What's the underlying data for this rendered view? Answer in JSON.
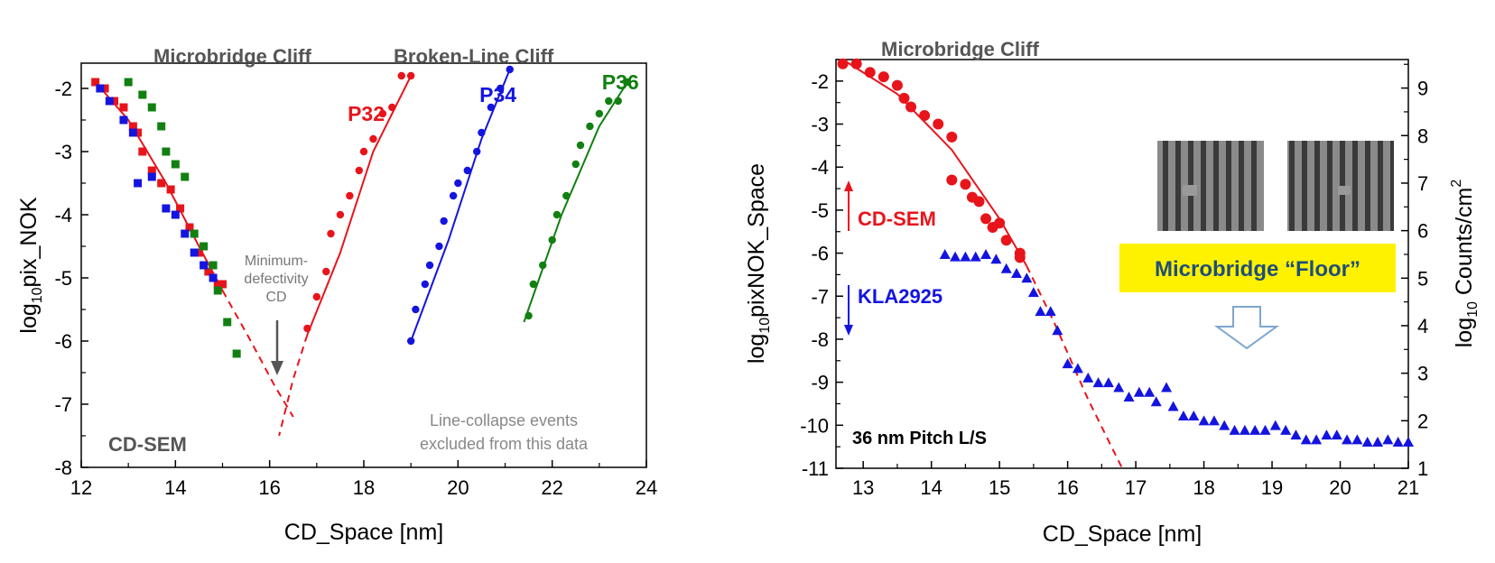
{
  "colors": {
    "red": "#e8141b",
    "blue": "#1414e0",
    "green": "#118011",
    "gray": "#555555",
    "yellow": "#fff200"
  },
  "chart_data": [
    {
      "type": "scatter",
      "xlabel": "CD_Space  [nm]",
      "ylabel_base": "log",
      "ylabel_sub": "10",
      "ylabel_tail": "pix_NOK",
      "xlim": [
        12,
        24
      ],
      "ylim": [
        -8,
        -1.6
      ],
      "xticks": [
        12,
        14,
        16,
        18,
        20,
        22,
        24
      ],
      "xtick_labels": [
        "12",
        "14",
        "16",
        "18",
        "20",
        "22",
        "24"
      ],
      "yticks": [
        -8,
        -7,
        -6,
        -5,
        -4,
        -3,
        -2
      ],
      "ytick_labels": [
        "-8",
        "-7",
        "-6",
        "-5",
        "-4",
        "-3",
        "-2"
      ],
      "annotations": {
        "microbridge_cliff": "Microbridge Cliff",
        "broken_line_cliff": "Broken-Line Cliff",
        "min_def_1": "Minimum-",
        "min_def_2": "defectivity",
        "min_def_3": "CD",
        "cdsem": "CD-SEM",
        "excluded_1": "Line-collapse events",
        "excluded_2": "excluded from this data"
      },
      "microbridge_series": [
        {
          "color": "red",
          "points": [
            [
              12.3,
              -1.9
            ],
            [
              12.5,
              -2.0
            ],
            [
              12.7,
              -2.2
            ],
            [
              12.9,
              -2.3
            ],
            [
              13.1,
              -2.6
            ],
            [
              13.2,
              -2.7
            ],
            [
              13.3,
              -3.0
            ],
            [
              13.5,
              -3.3
            ],
            [
              13.7,
              -3.5
            ],
            [
              13.9,
              -3.6
            ],
            [
              14.1,
              -3.9
            ],
            [
              14.3,
              -4.2
            ],
            [
              14.5,
              -4.6
            ],
            [
              14.7,
              -4.9
            ],
            [
              14.9,
              -5.1
            ],
            [
              15.0,
              -5.1
            ]
          ]
        },
        {
          "color": "blue",
          "points": [
            [
              12.4,
              -2.0
            ],
            [
              12.6,
              -2.2
            ],
            [
              12.9,
              -2.5
            ],
            [
              13.1,
              -2.7
            ],
            [
              13.2,
              -3.5
            ],
            [
              13.5,
              -3.4
            ],
            [
              13.8,
              -3.9
            ],
            [
              14.0,
              -4.0
            ],
            [
              14.2,
              -4.3
            ],
            [
              14.4,
              -4.6
            ],
            [
              14.6,
              -4.8
            ],
            [
              14.8,
              -5.0
            ]
          ]
        },
        {
          "color": "green",
          "points": [
            [
              13.0,
              -1.9
            ],
            [
              13.3,
              -2.1
            ],
            [
              13.5,
              -2.3
            ],
            [
              13.7,
              -2.6
            ],
            [
              13.8,
              -3.0
            ],
            [
              14.0,
              -3.2
            ],
            [
              14.2,
              -3.4
            ],
            [
              14.4,
              -4.3
            ],
            [
              14.6,
              -4.5
            ],
            [
              14.8,
              -4.8
            ],
            [
              14.9,
              -5.2
            ],
            [
              15.1,
              -5.7
            ],
            [
              15.3,
              -6.2
            ]
          ]
        }
      ],
      "microbridge_fit": [
        [
          12.3,
          -1.9
        ],
        [
          13.0,
          -2.5
        ],
        [
          13.8,
          -3.5
        ],
        [
          14.5,
          -4.5
        ],
        [
          15.0,
          -5.2
        ]
      ],
      "microbridge_fit_ext": [
        [
          15.0,
          -5.2
        ],
        [
          15.6,
          -6.0
        ],
        [
          16.1,
          -6.7
        ],
        [
          16.5,
          -7.2
        ]
      ],
      "broken_series": [
        {
          "name": "P32",
          "color": "red",
          "points": [
            [
              16.8,
              -5.8
            ],
            [
              17.0,
              -5.3
            ],
            [
              17.2,
              -4.9
            ],
            [
              17.3,
              -4.3
            ],
            [
              17.5,
              -4.0
            ],
            [
              17.7,
              -3.7
            ],
            [
              17.9,
              -3.3
            ],
            [
              18.0,
              -3.0
            ],
            [
              18.2,
              -2.8
            ],
            [
              18.4,
              -2.4
            ],
            [
              18.6,
              -2.3
            ],
            [
              18.8,
              -1.8
            ],
            [
              19.0,
              -1.8
            ]
          ]
        },
        {
          "name": "P34",
          "color": "blue",
          "points": [
            [
              19.0,
              -6.0
            ],
            [
              19.1,
              -5.5
            ],
            [
              19.3,
              -5.1
            ],
            [
              19.4,
              -4.8
            ],
            [
              19.6,
              -4.5
            ],
            [
              19.7,
              -4.1
            ],
            [
              19.9,
              -3.7
            ],
            [
              20.0,
              -3.5
            ],
            [
              20.2,
              -3.3
            ],
            [
              20.4,
              -3.0
            ],
            [
              20.5,
              -2.7
            ],
            [
              20.7,
              -2.3
            ],
            [
              20.9,
              -2.0
            ],
            [
              21.1,
              -1.7
            ]
          ]
        },
        {
          "name": "P36",
          "color": "green",
          "points": [
            [
              21.5,
              -5.6
            ],
            [
              21.6,
              -5.1
            ],
            [
              21.8,
              -4.8
            ],
            [
              22.0,
              -4.4
            ],
            [
              22.1,
              -4.0
            ],
            [
              22.3,
              -3.7
            ],
            [
              22.5,
              -3.2
            ],
            [
              22.6,
              -2.9
            ],
            [
              22.8,
              -2.6
            ],
            [
              23.0,
              -2.4
            ],
            [
              23.2,
              -2.2
            ],
            [
              23.4,
              -2.2
            ],
            [
              23.6,
              -1.9
            ]
          ]
        }
      ],
      "broken_fits": [
        {
          "color": "red",
          "points": [
            [
              16.8,
              -5.9
            ],
            [
              17.5,
              -4.6
            ],
            [
              18.2,
              -3.0
            ],
            [
              19.0,
              -1.8
            ]
          ]
        },
        {
          "color": "blue",
          "points": [
            [
              19.0,
              -6.0
            ],
            [
              19.8,
              -4.4
            ],
            [
              20.5,
              -2.8
            ],
            [
              21.1,
              -1.7
            ]
          ]
        },
        {
          "color": "green",
          "points": [
            [
              21.4,
              -5.7
            ],
            [
              22.2,
              -4.0
            ],
            [
              23.0,
              -2.6
            ],
            [
              23.6,
              -1.9
            ]
          ]
        }
      ],
      "p32_fit_ext": [
        [
          16.8,
          -5.9
        ],
        [
          16.5,
          -6.6
        ],
        [
          16.2,
          -7.5
        ]
      ]
    },
    {
      "type": "scatter",
      "xlabel": "CD_Space  [nm]",
      "ylabel_base": "log",
      "ylabel_sub": "10",
      "ylabel_tail": "pixNOK_Space",
      "y2label_base": "log",
      "y2label_sub": "10",
      "y2label_tail": " Counts/cm",
      "y2label_sup": "2",
      "xlim": [
        12.6,
        21
      ],
      "ylim": [
        -11,
        -1.5
      ],
      "y2lim": [
        1,
        9.6
      ],
      "xticks": [
        13,
        14,
        15,
        16,
        17,
        18,
        19,
        20,
        21
      ],
      "xtick_labels": [
        "13",
        "14",
        "15",
        "16",
        "17",
        "18",
        "19",
        "20",
        "21"
      ],
      "yticks": [
        -11,
        -10,
        -9,
        -8,
        -7,
        -6,
        -5,
        -4,
        -3,
        -2
      ],
      "ytick_labels": [
        "-11",
        "-10",
        "-9",
        "-8",
        "-7",
        "-6",
        "-5",
        "-4",
        "-3",
        "-2"
      ],
      "y2ticks": [
        1,
        2,
        3,
        4,
        5,
        6,
        7,
        8,
        9
      ],
      "y2tick_labels": [
        "1",
        "2",
        "3",
        "4",
        "5",
        "6",
        "7",
        "8",
        "9"
      ],
      "annotations": {
        "microbridge_cliff": "Microbridge Cliff",
        "cdsem": "CD-SEM",
        "kla": "KLA2925",
        "pitch": "36 nm Pitch L/S",
        "floor": "Microbridge “Floor”"
      },
      "cdsem_points": [
        [
          12.7,
          -1.6
        ],
        [
          12.9,
          -1.6
        ],
        [
          13.1,
          -1.8
        ],
        [
          13.3,
          -1.9
        ],
        [
          13.5,
          -2.1
        ],
        [
          13.6,
          -2.4
        ],
        [
          13.7,
          -2.6
        ],
        [
          13.9,
          -2.8
        ],
        [
          14.1,
          -3.0
        ],
        [
          14.3,
          -3.3
        ],
        [
          14.3,
          -4.3
        ],
        [
          14.5,
          -4.4
        ],
        [
          14.6,
          -4.7
        ],
        [
          14.7,
          -4.8
        ],
        [
          14.8,
          -5.2
        ],
        [
          14.9,
          -5.4
        ],
        [
          15.0,
          -5.3
        ],
        [
          15.1,
          -5.7
        ],
        [
          15.3,
          -6.0
        ],
        [
          15.3,
          -6.1
        ]
      ],
      "cdsem_fit": [
        [
          12.7,
          -1.5
        ],
        [
          13.5,
          -2.3
        ],
        [
          14.3,
          -3.6
        ],
        [
          15.0,
          -5.2
        ],
        [
          15.4,
          -6.3
        ]
      ],
      "cdsem_fit_ext": [
        [
          15.4,
          -6.3
        ],
        [
          15.8,
          -7.6
        ],
        [
          16.3,
          -9.4
        ],
        [
          16.8,
          -11.0
        ]
      ],
      "kla_points": [
        [
          14.2,
          5.5
        ],
        [
          14.35,
          5.45
        ],
        [
          14.5,
          5.45
        ],
        [
          14.65,
          5.45
        ],
        [
          14.8,
          5.5
        ],
        [
          14.95,
          5.4
        ],
        [
          15.1,
          5.2
        ],
        [
          15.25,
          5.1
        ],
        [
          15.4,
          5.0
        ],
        [
          15.5,
          4.7
        ],
        [
          15.6,
          4.3
        ],
        [
          15.75,
          4.3
        ],
        [
          15.85,
          3.9
        ],
        [
          16.0,
          3.2
        ],
        [
          16.15,
          3.1
        ],
        [
          16.3,
          2.9
        ],
        [
          16.45,
          2.8
        ],
        [
          16.6,
          2.8
        ],
        [
          16.75,
          2.7
        ],
        [
          16.9,
          2.5
        ],
        [
          17.05,
          2.6
        ],
        [
          17.2,
          2.6
        ],
        [
          17.3,
          2.4
        ],
        [
          17.45,
          2.7
        ],
        [
          17.55,
          2.3
        ],
        [
          17.7,
          2.1
        ],
        [
          17.85,
          2.1
        ],
        [
          18.0,
          2.0
        ],
        [
          18.15,
          2.0
        ],
        [
          18.3,
          1.9
        ],
        [
          18.45,
          1.8
        ],
        [
          18.6,
          1.8
        ],
        [
          18.75,
          1.8
        ],
        [
          18.9,
          1.8
        ],
        [
          19.05,
          1.9
        ],
        [
          19.2,
          1.8
        ],
        [
          19.35,
          1.7
        ],
        [
          19.5,
          1.6
        ],
        [
          19.65,
          1.6
        ],
        [
          19.8,
          1.7
        ],
        [
          19.95,
          1.7
        ],
        [
          20.1,
          1.6
        ],
        [
          20.25,
          1.6
        ],
        [
          20.4,
          1.55
        ],
        [
          20.55,
          1.55
        ],
        [
          20.7,
          1.6
        ],
        [
          20.85,
          1.55
        ],
        [
          21.0,
          1.55
        ]
      ]
    }
  ]
}
